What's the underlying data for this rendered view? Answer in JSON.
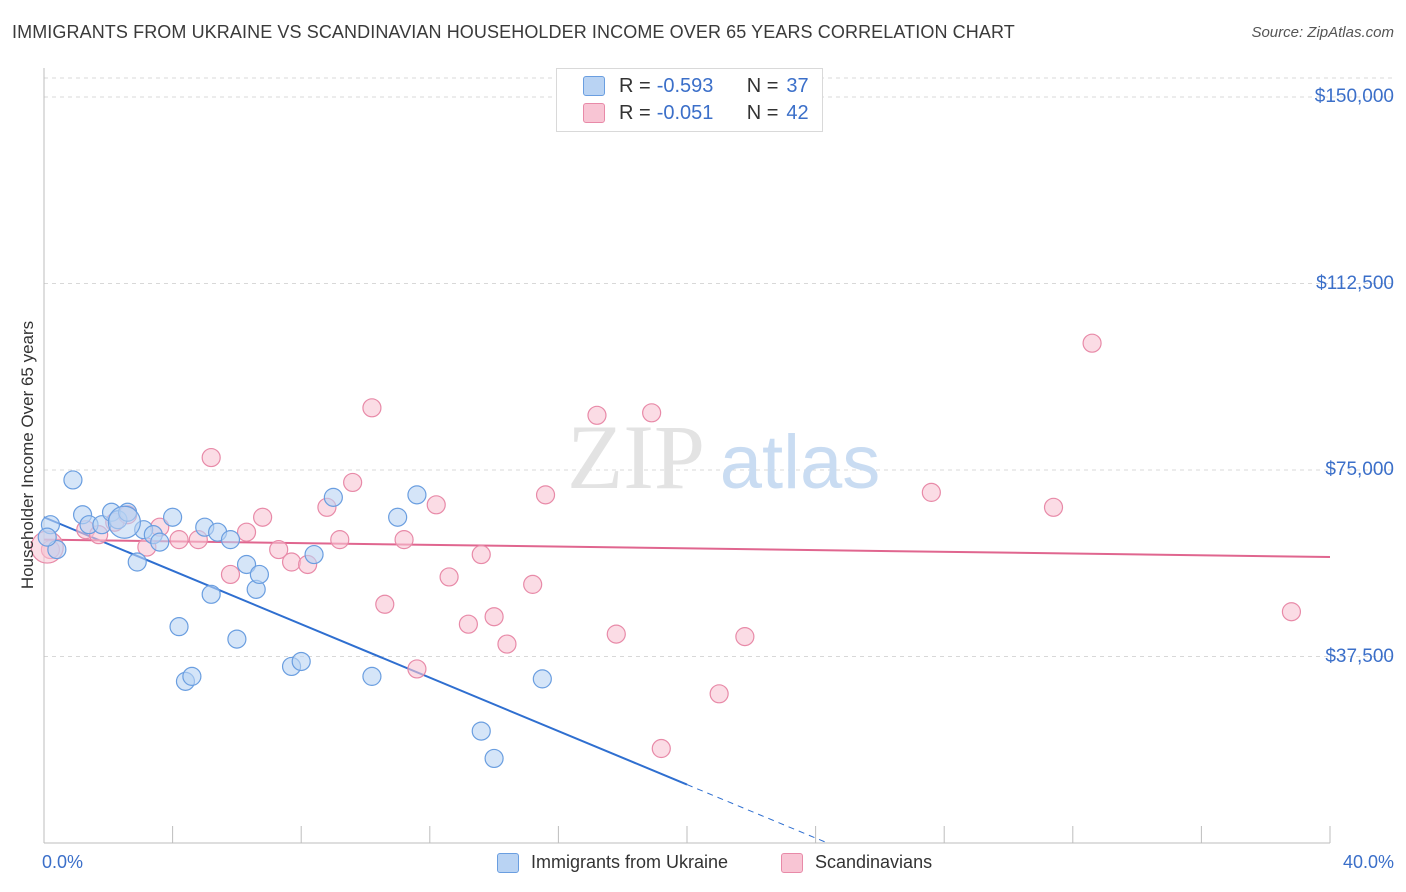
{
  "header": {
    "title": "IMMIGRANTS FROM UKRAINE VS SCANDINAVIAN HOUSEHOLDER INCOME OVER 65 YEARS CORRELATION CHART",
    "source": "Source: ZipAtlas.com"
  },
  "watermark": {
    "zip": "ZIP",
    "atlas": "atlas"
  },
  "legend": {
    "rows": [
      {
        "r_label": "R =",
        "r_value": "-0.593",
        "n_label": "N =",
        "n_value": "37"
      },
      {
        "r_label": "R =",
        "r_value": "-0.051",
        "n_label": "N =",
        "n_value": "42"
      }
    ]
  },
  "bottom_legend": {
    "items": [
      {
        "label": "Immigrants from Ukraine"
      },
      {
        "label": "Scandinavians"
      }
    ]
  },
  "colors": {
    "series1_fill": "#b9d3f3",
    "series1_stroke": "#6a9ee0",
    "series1_line": "#2f6fd0",
    "series2_fill": "#f8c5d4",
    "series2_stroke": "#e88aa8",
    "series2_line": "#e0668f",
    "tick_label": "#3b6fc9",
    "grid": "#d8d8d8"
  },
  "chart_data": {
    "type": "scatter",
    "title": "IMMIGRANTS FROM UKRAINE VS SCANDINAVIAN HOUSEHOLDER INCOME OVER 65 YEARS CORRELATION CHART",
    "xlabel": "",
    "ylabel": "Householder Income Over 65 years",
    "xlim": [
      0,
      40
    ],
    "ylim": [
      0,
      155000
    ],
    "x_tick_labels": [
      "0.0%",
      "40.0%"
    ],
    "y_ticks": [
      37500,
      75000,
      112500,
      150000
    ],
    "y_tick_labels": [
      "$37,500",
      "$75,000",
      "$112,500",
      "$150,000"
    ],
    "grid": "horizontal dashed",
    "legend_position": "top-center",
    "series": [
      {
        "name": "Immigrants from Ukraine",
        "points": [
          [
            0.2,
            64000
          ],
          [
            0.4,
            59000
          ],
          [
            0.9,
            73000
          ],
          [
            1.2,
            66000
          ],
          [
            1.4,
            64000
          ],
          [
            1.8,
            64000
          ],
          [
            2.1,
            66500
          ],
          [
            2.3,
            65000
          ],
          [
            2.6,
            66500
          ],
          [
            2.9,
            56500
          ],
          [
            3.1,
            63000
          ],
          [
            3.4,
            62000
          ],
          [
            3.6,
            60500
          ],
          [
            4.0,
            65500
          ],
          [
            4.2,
            43500
          ],
          [
            4.4,
            32500
          ],
          [
            4.6,
            33500
          ],
          [
            5.0,
            63500
          ],
          [
            5.2,
            50000
          ],
          [
            5.4,
            62500
          ],
          [
            5.8,
            61000
          ],
          [
            6.0,
            41000
          ],
          [
            6.3,
            56000
          ],
          [
            6.6,
            51000
          ],
          [
            6.7,
            54000
          ],
          [
            7.7,
            35500
          ],
          [
            8.0,
            36500
          ],
          [
            8.4,
            58000
          ],
          [
            9.0,
            69500
          ],
          [
            10.2,
            33500
          ],
          [
            11.0,
            65500
          ],
          [
            11.6,
            70000
          ],
          [
            13.6,
            22500
          ],
          [
            14.0,
            17000
          ],
          [
            15.5,
            33000
          ],
          [
            0.1,
            61500
          ],
          [
            2.5,
            64500
          ]
        ],
        "trend": {
          "x0": 0,
          "y0": 65500,
          "x1": 40,
          "y1": -42000,
          "solid_until_x": 20
        }
      },
      {
        "name": "Scandinavians",
        "points": [
          [
            0.2,
            59000
          ],
          [
            1.3,
            63000
          ],
          [
            1.7,
            62000
          ],
          [
            2.2,
            64500
          ],
          [
            2.6,
            66000
          ],
          [
            3.2,
            59500
          ],
          [
            3.6,
            63500
          ],
          [
            4.2,
            61000
          ],
          [
            4.8,
            61000
          ],
          [
            5.2,
            77500
          ],
          [
            5.8,
            54000
          ],
          [
            6.3,
            62500
          ],
          [
            6.8,
            65500
          ],
          [
            7.3,
            59000
          ],
          [
            7.7,
            56500
          ],
          [
            8.2,
            56000
          ],
          [
            8.8,
            67500
          ],
          [
            9.2,
            61000
          ],
          [
            9.6,
            72500
          ],
          [
            10.2,
            87500
          ],
          [
            10.6,
            48000
          ],
          [
            11.2,
            61000
          ],
          [
            11.6,
            35000
          ],
          [
            12.2,
            68000
          ],
          [
            12.6,
            53500
          ],
          [
            13.2,
            44000
          ],
          [
            13.6,
            58000
          ],
          [
            14.0,
            45500
          ],
          [
            14.4,
            40000
          ],
          [
            15.2,
            52000
          ],
          [
            15.6,
            70000
          ],
          [
            17.2,
            86000
          ],
          [
            17.8,
            42000
          ],
          [
            18.9,
            86500
          ],
          [
            19.2,
            19000
          ],
          [
            21.0,
            30000
          ],
          [
            21.8,
            41500
          ],
          [
            27.6,
            70500
          ],
          [
            31.4,
            67500
          ],
          [
            32.6,
            100500
          ],
          [
            38.8,
            46500
          ],
          [
            0.1,
            59500
          ]
        ],
        "trend": {
          "x0": 0,
          "y0": 61000,
          "x1": 40,
          "y1": 57500
        }
      }
    ]
  }
}
